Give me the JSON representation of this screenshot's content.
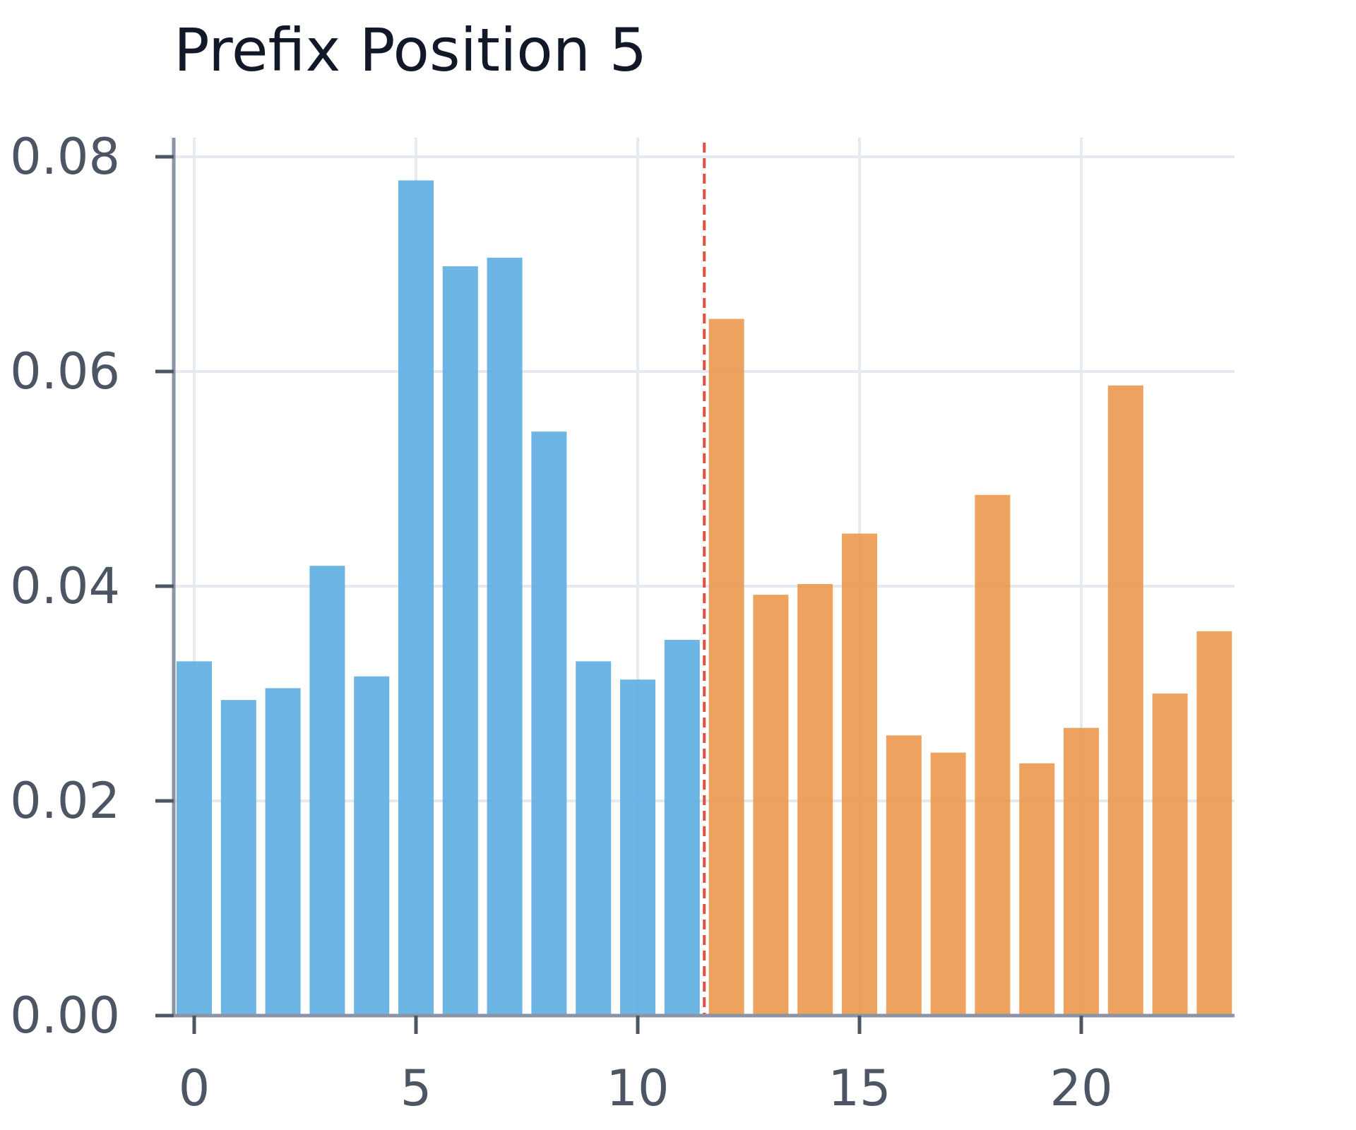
{
  "chart_data": {
    "type": "bar",
    "title": "Prefix Position 5",
    "xlabel": "",
    "ylabel": "",
    "x": [
      0,
      1,
      2,
      3,
      4,
      5,
      6,
      7,
      8,
      9,
      10,
      11,
      12,
      13,
      14,
      15,
      16,
      17,
      18,
      19,
      20,
      21,
      22,
      23
    ],
    "values": [
      0.033,
      0.0294,
      0.0305,
      0.0419,
      0.0316,
      0.0778,
      0.0698,
      0.0706,
      0.0544,
      0.033,
      0.0313,
      0.035,
      0.0649,
      0.0392,
      0.0402,
      0.0449,
      0.0261,
      0.0245,
      0.0485,
      0.0235,
      0.0268,
      0.0587,
      0.03,
      0.0358
    ],
    "series": [
      {
        "x_range": [
          0,
          11
        ],
        "color": "#5dade2"
      },
      {
        "x_range": [
          12,
          23
        ],
        "color": "#eb984e"
      }
    ],
    "divider": {
      "x": 11.5,
      "color": "#e74c3c",
      "style": "dashed"
    },
    "xlim": [
      -0.5,
      23.5
    ],
    "ylim": [
      0,
      0.0818
    ],
    "xticks": [
      0,
      5,
      10,
      15,
      20
    ],
    "xtick_labels": [
      "0",
      "5",
      "10",
      "15",
      "20"
    ],
    "yticks": [
      0.0,
      0.02,
      0.04,
      0.06,
      0.08
    ],
    "ytick_labels": [
      "0.00",
      "0.02",
      "0.04",
      "0.06",
      "0.08"
    ],
    "grid": true,
    "legend": null
  }
}
